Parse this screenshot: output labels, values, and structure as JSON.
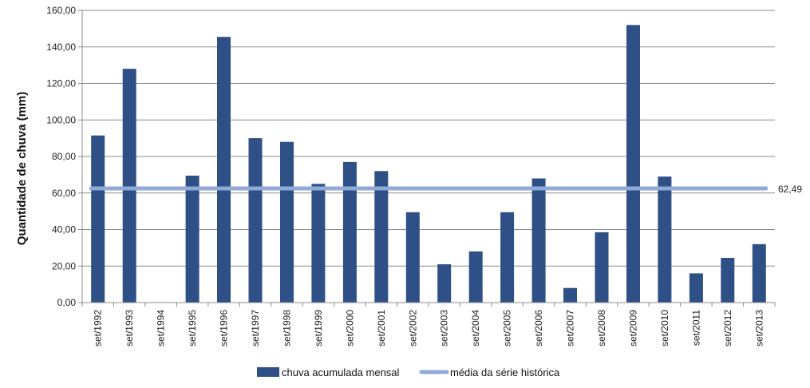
{
  "chart_data": {
    "type": "bar",
    "title": "",
    "xlabel": "",
    "ylabel": "Quantidade de chuva (mm)",
    "ylim": [
      0,
      160
    ],
    "yticks": [
      "0,00",
      "20,00",
      "40,00",
      "60,00",
      "80,00",
      "100,00",
      "120,00",
      "140,00",
      "160,00"
    ],
    "grid": true,
    "legend_position": "bottom",
    "categories": [
      "set/1992",
      "set/1993",
      "set/1994",
      "set/1995",
      "set/1996",
      "set/1997",
      "set/1998",
      "set/1999",
      "set/2000",
      "set/2001",
      "set/2002",
      "set/2003",
      "set/2004",
      "set/2005",
      "set/2006",
      "set/2007",
      "set/2008",
      "set/2009",
      "set/2010",
      "set/2011",
      "set/2012",
      "set/2013"
    ],
    "series": [
      {
        "name": "chuva acumulada mensal",
        "type": "bar",
        "color": "#2e5086",
        "values": [
          91.5,
          128.0,
          0.0,
          69.5,
          145.5,
          90.0,
          88.0,
          65.0,
          77.0,
          72.0,
          49.5,
          21.0,
          28.0,
          49.5,
          68.0,
          8.0,
          38.5,
          152.0,
          69.0,
          16.0,
          24.5,
          32.0
        ]
      },
      {
        "name": "média da série histórica",
        "type": "line",
        "color": "#8faad6",
        "value": 62.49,
        "label": "62,49"
      }
    ]
  }
}
